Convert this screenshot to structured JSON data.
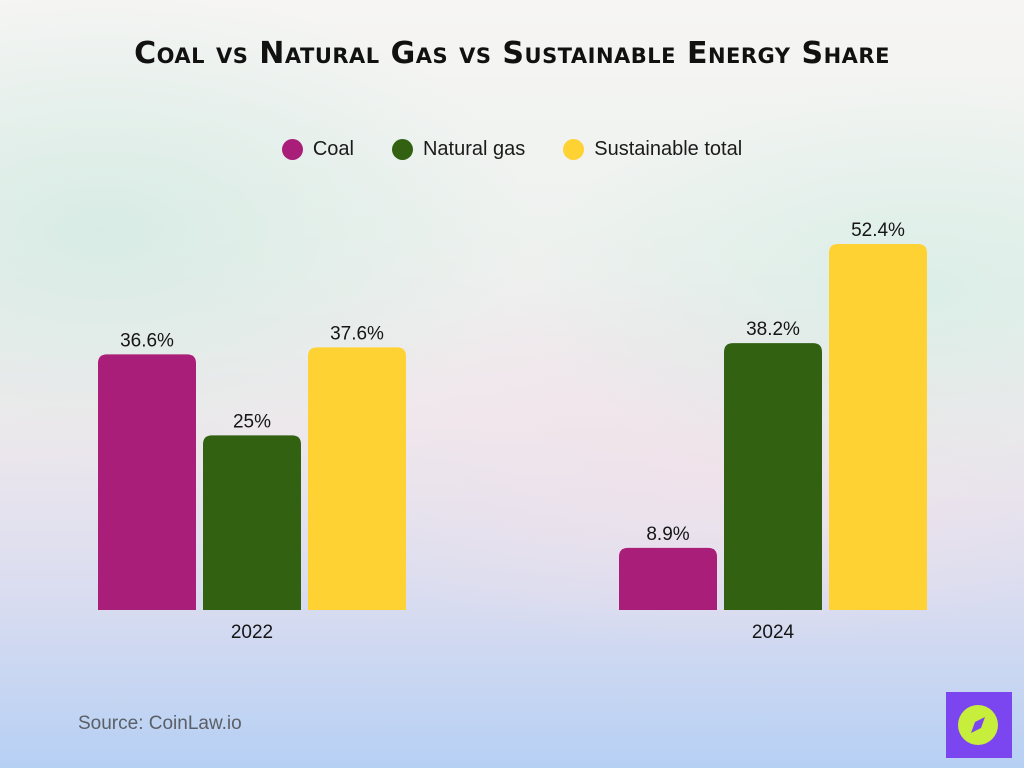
{
  "title": "Coal vs Natural Gas vs Sustainable Energy Share",
  "source": "Source: CoinLaw.io",
  "chart_data": {
    "type": "bar",
    "categories": [
      "2022",
      "2024"
    ],
    "series": [
      {
        "name": "Coal",
        "color": "#a81e78",
        "values": [
          36.6,
          8.9
        ],
        "labels": [
          "36.6%",
          "8.9%"
        ]
      },
      {
        "name": "Natural gas",
        "color": "#336112",
        "values": [
          25,
          38.2
        ],
        "labels": [
          "25%",
          "38.2%"
        ]
      },
      {
        "name": "Sustainable total",
        "color": "#ffd234",
        "values": [
          37.6,
          52.4
        ],
        "labels": [
          "37.6%",
          "52.4%"
        ]
      }
    ],
    "unit": "%",
    "legend_position": "top-center",
    "grid": false,
    "ylim": [
      0,
      52.4
    ]
  }
}
